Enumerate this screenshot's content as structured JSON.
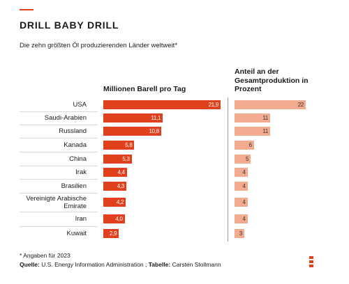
{
  "chart_data": {
    "type": "bar",
    "title": "DRILL BABY DRILL",
    "subtitle": "Die zehn größten Öl produzierenden Länder weltweit*",
    "categories": [
      "USA",
      "Saudi-Arabien",
      "Russland",
      "Kanada",
      "China",
      "Irak",
      "Brasilien",
      "Vereinigte Arabische Emirate",
      "Iran",
      "Kuwait"
    ],
    "series": [
      {
        "name": "Millionen Barell pro Tag",
        "color": "#e0401c",
        "values": [
          21.9,
          11.1,
          10.8,
          5.8,
          5.3,
          4.4,
          4.3,
          4.2,
          4.0,
          2.9
        ],
        "value_labels": [
          "21,9",
          "11,1",
          "10,8",
          "5,8",
          "5,3",
          "4,4",
          "4,3",
          "4,2",
          "4,0",
          "2,9"
        ]
      },
      {
        "name": "Anteil an der Gesamtproduktion in Prozent",
        "color": "#f2ab8e",
        "values": [
          22,
          11,
          11,
          6,
          5,
          4,
          4,
          4,
          4,
          3
        ]
      }
    ],
    "note": "* Angaben für 2023",
    "source_label": "Quelle:",
    "source": "U.S. Energy Information Administration ;",
    "credit_label": "Tabelle:",
    "credit": "Carsten Stollmann"
  }
}
